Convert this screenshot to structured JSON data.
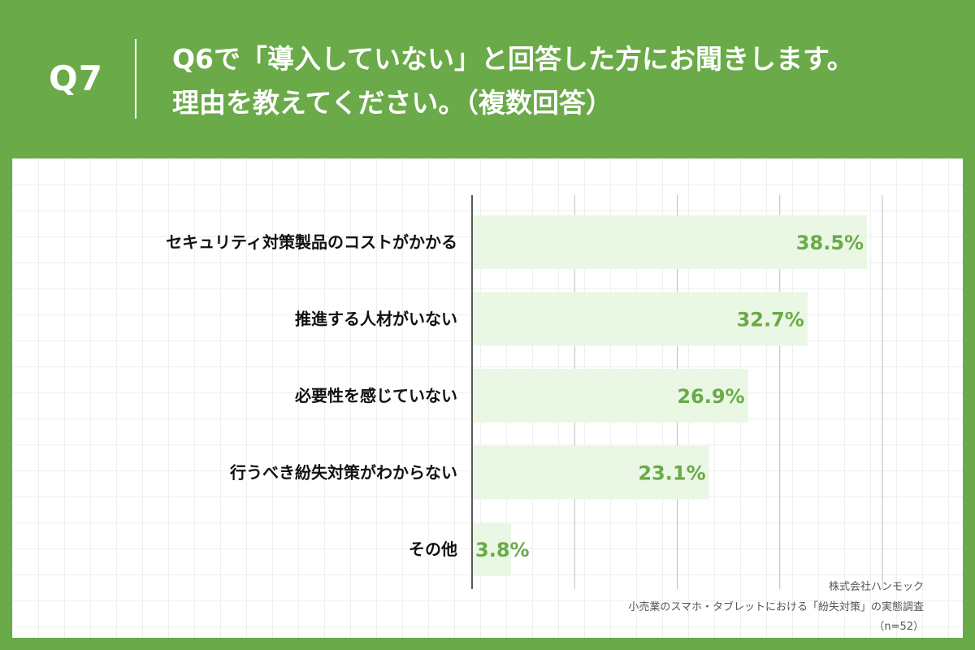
{
  "header": {
    "q_number": "Q7",
    "question_line1": "Q6で「導入していない」と回答した方にお聞きします。",
    "question_line2": "理由を教えてください。（複数回答）",
    "background_color": "#6aaa48"
  },
  "chart_data": {
    "type": "bar",
    "orientation": "horizontal",
    "categories": [
      "セキュリティ対策製品のコストがかかる",
      "推進する人材がいない",
      "必要性を感じていない",
      "行うべき紛失対策がわからない",
      "その他"
    ],
    "values": [
      38.5,
      32.7,
      26.9,
      23.1,
      3.8
    ],
    "value_labels": [
      "38.5%",
      "32.7%",
      "26.9%",
      "23.1%",
      "3.8%"
    ],
    "xlim": [
      0,
      40
    ],
    "grid": true,
    "bar_color": "#eaf7e4",
    "label_color": "#6aaa48"
  },
  "source": {
    "company": "株式会社ハンモック",
    "survey": "小売業のスマホ・タブレットにおける「紛失対策」の実態調査",
    "sample": "（n=52）"
  }
}
